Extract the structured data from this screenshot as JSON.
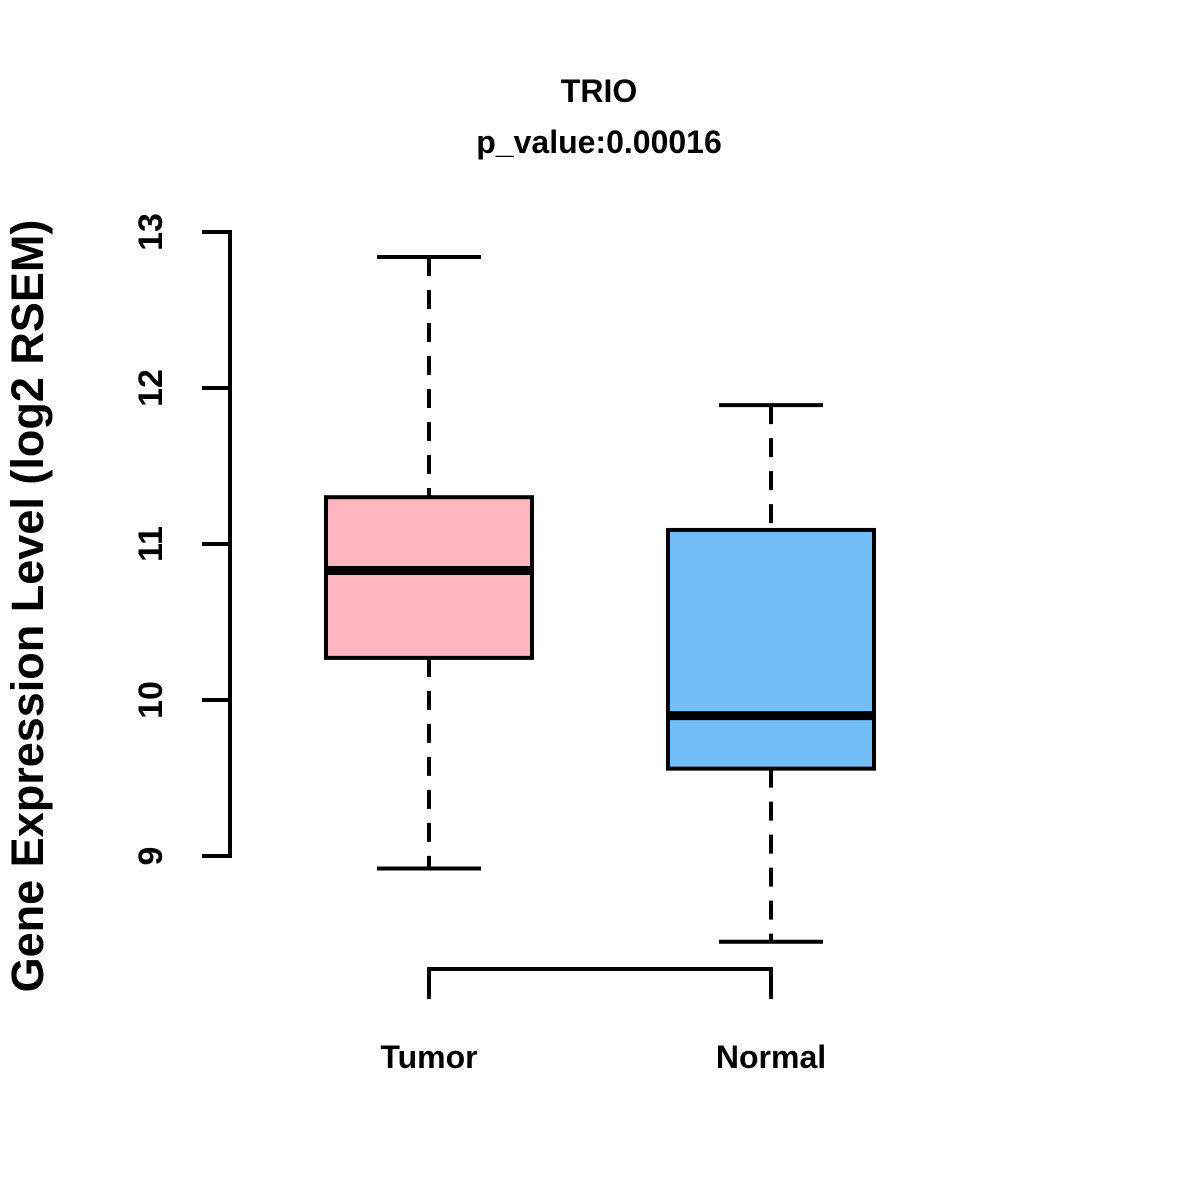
{
  "chart_data": {
    "type": "boxplot",
    "title": "TRIO",
    "subtitle": "p_value:0.00016",
    "ylabel": "Gene Expression Level (log2 RSEM)",
    "ylim": [
      9,
      13
    ],
    "yticks": [
      9,
      10,
      11,
      12,
      13
    ],
    "grid": false,
    "legend": "none",
    "categories": [
      "Tumor",
      "Normal"
    ],
    "series": [
      {
        "name": "Tumor",
        "whisker_low": 8.92,
        "q1": 10.27,
        "median": 10.83,
        "q3": 11.3,
        "whisker_high": 12.84,
        "fill_color": "#FFB6C1",
        "stroke_color": "#000000"
      },
      {
        "name": "Normal",
        "whisker_low": 8.45,
        "q1": 9.56,
        "median": 9.9,
        "q3": 11.09,
        "whisker_high": 11.89,
        "fill_color": "#74BEF8",
        "stroke_color": "#000000"
      }
    ]
  }
}
